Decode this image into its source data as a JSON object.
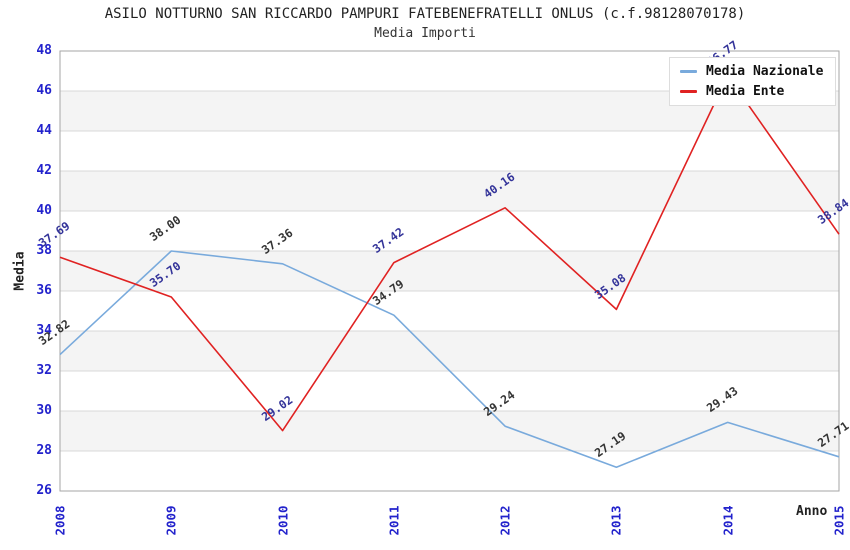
{
  "chart_data": {
    "type": "line",
    "title": "ASILO NOTTURNO SAN RICCARDO PAMPURI FATEBENEFRATELLI ONLUS (c.f.98128070178)",
    "subtitle": "Media Importi",
    "xlabel": "Anno",
    "ylabel": "Media",
    "categories": [
      "2008",
      "2009",
      "2010",
      "2011",
      "2012",
      "2013",
      "2014",
      "2015"
    ],
    "ylim": [
      26,
      48
    ],
    "yticks": [
      26,
      28,
      30,
      32,
      34,
      36,
      38,
      40,
      42,
      44,
      46,
      48
    ],
    "grid": true,
    "alternating_bands": true,
    "legend_position": "top-right",
    "colors": {
      "axis_tick": "#2222cc",
      "band": "#f4f4f4",
      "gridline": "#d8d8d8",
      "plot_border": "#a6a6a6"
    },
    "series": [
      {
        "name": "Media Nazionale",
        "color": "#79aadc",
        "label_color": "#333333",
        "values": [
          32.82,
          38.0,
          37.36,
          34.79,
          29.24,
          27.19,
          29.43,
          27.71
        ],
        "labels": [
          "32.82",
          "38.00",
          "37.36",
          "34.79",
          "29.24",
          "27.19",
          "29.43",
          "27.71"
        ]
      },
      {
        "name": "Media Ente",
        "color": "#e02222",
        "label_color": "#333399",
        "values": [
          37.69,
          35.7,
          29.02,
          37.42,
          40.16,
          35.08,
          46.77,
          38.84
        ],
        "labels": [
          "37.69",
          "35.70",
          "29.02",
          "37.42",
          "40.16",
          "35.08",
          "46.77",
          "38.84"
        ]
      }
    ]
  }
}
